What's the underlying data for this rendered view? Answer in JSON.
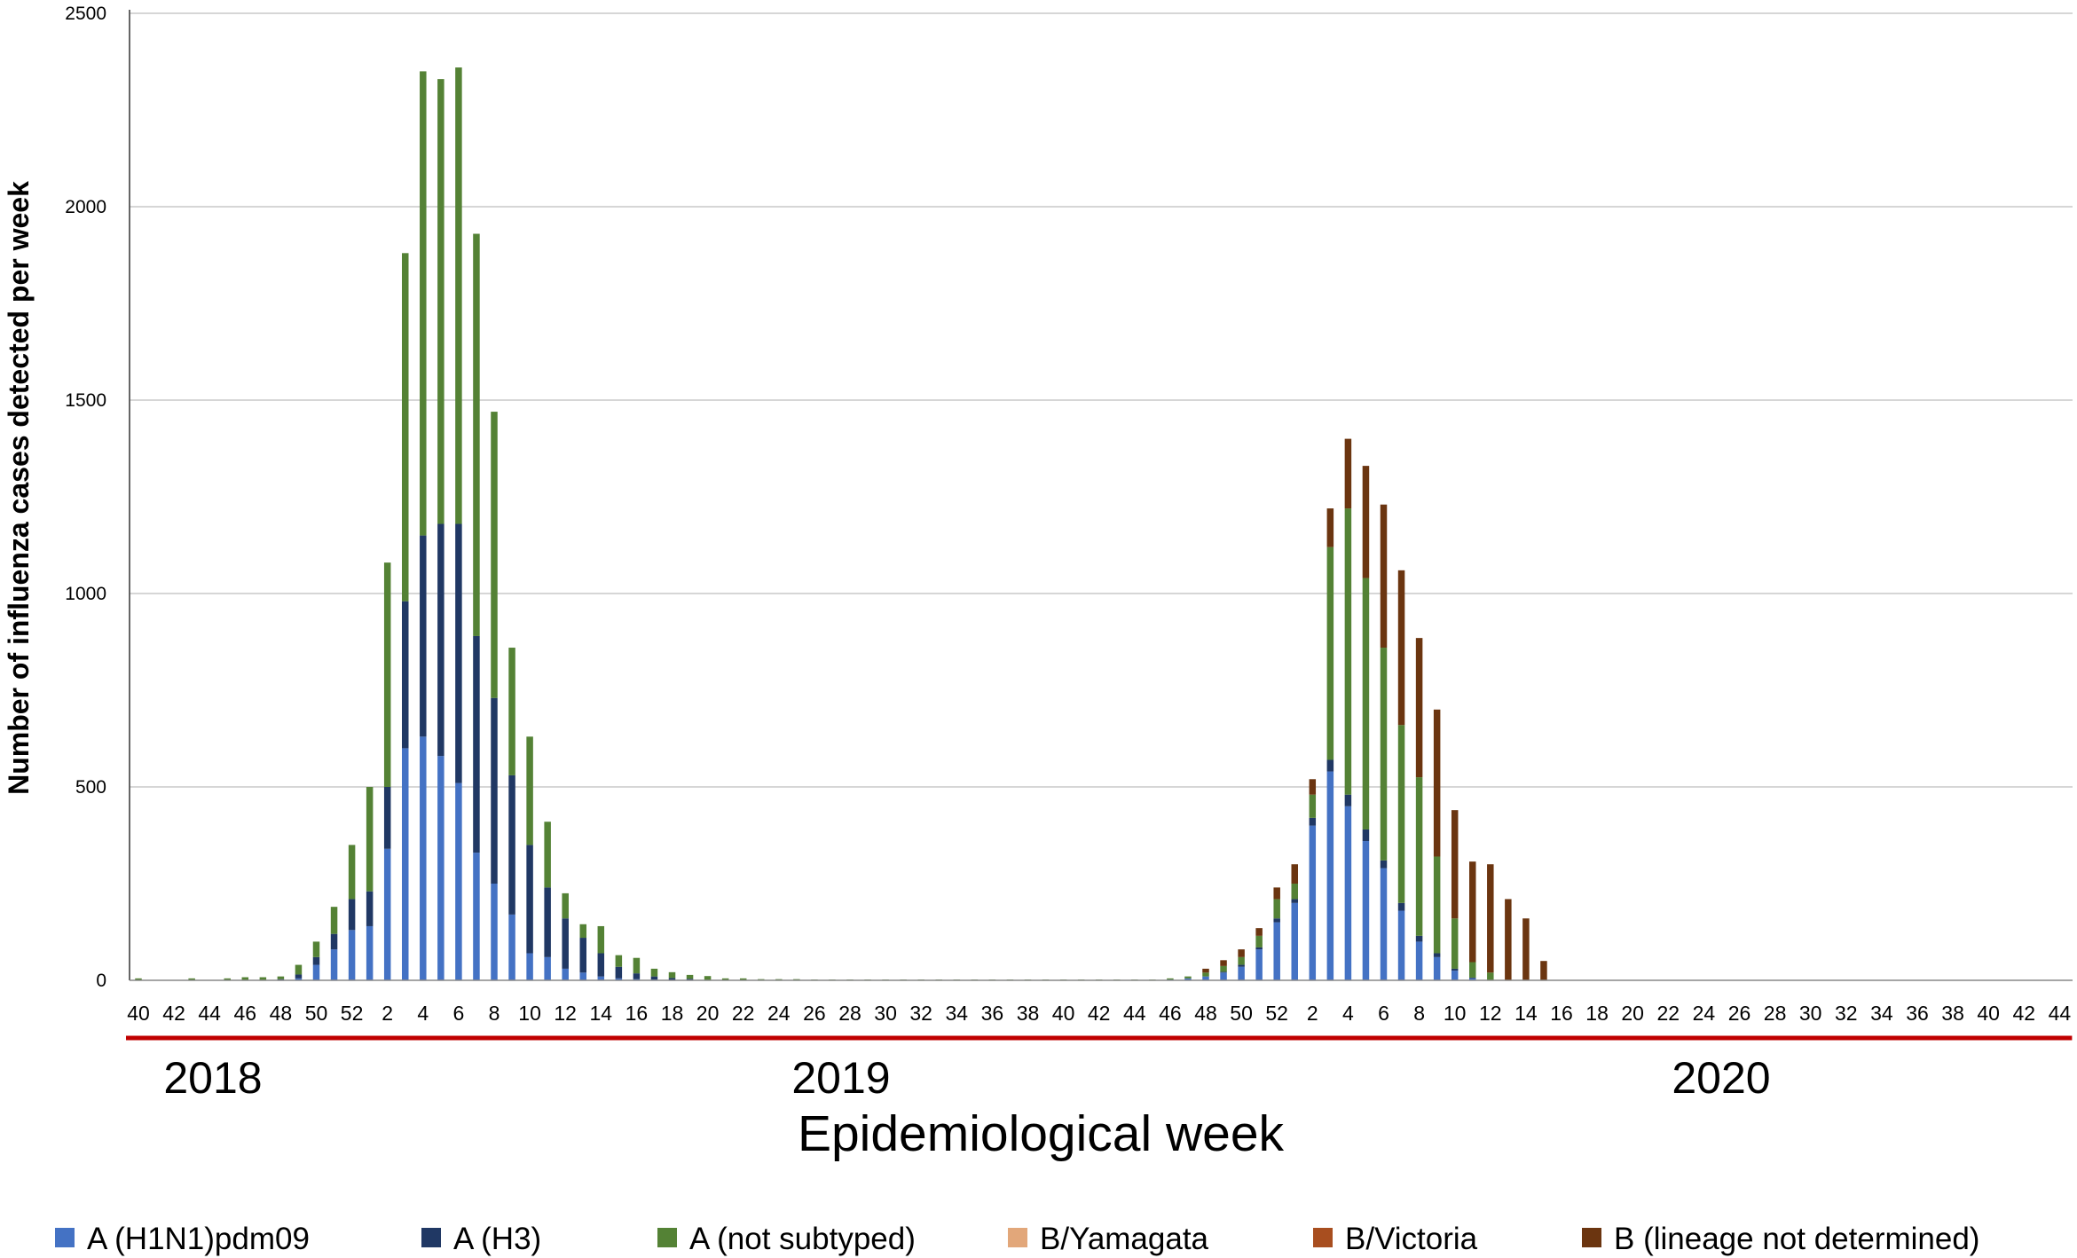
{
  "chart_data": {
    "type": "bar",
    "stacked": true,
    "title": "",
    "xlabel": "Epidemiological week",
    "ylabel": "Number of influenza cases detected per week",
    "ylim": [
      0,
      2500
    ],
    "yticks": [
      0,
      500,
      1000,
      1500,
      2000,
      2500
    ],
    "grid": true,
    "legend_position": "bottom",
    "years": [
      {
        "label": "2018",
        "from_index": 0,
        "to_index": 12
      },
      {
        "label": "2019",
        "from_index": 13,
        "to_index": 64
      },
      {
        "label": "2020",
        "from_index": 65,
        "to_index": 108
      }
    ],
    "categories": [
      "40",
      "41",
      "42",
      "43",
      "44",
      "45",
      "46",
      "47",
      "48",
      "49",
      "50",
      "51",
      "52",
      "1",
      "2",
      "3",
      "4",
      "5",
      "6",
      "7",
      "8",
      "9",
      "10",
      "11",
      "12",
      "13",
      "14",
      "15",
      "16",
      "17",
      "18",
      "19",
      "20",
      "21",
      "22",
      "23",
      "24",
      "25",
      "26",
      "27",
      "28",
      "29",
      "30",
      "31",
      "32",
      "33",
      "34",
      "35",
      "36",
      "37",
      "38",
      "39",
      "40",
      "41",
      "42",
      "43",
      "44",
      "45",
      "46",
      "47",
      "48",
      "49",
      "50",
      "51",
      "52",
      "1",
      "2",
      "3",
      "4",
      "5",
      "6",
      "7",
      "8",
      "9",
      "10",
      "11",
      "12",
      "13",
      "14",
      "15",
      "16",
      "17",
      "18",
      "19",
      "20",
      "21",
      "22",
      "23",
      "24",
      "25",
      "26",
      "27",
      "28",
      "29",
      "30",
      "31",
      "32",
      "33",
      "34",
      "35",
      "36",
      "37",
      "38",
      "39",
      "40",
      "41",
      "42",
      "43",
      "44"
    ],
    "tick_labels": [
      "40",
      "",
      "42",
      "",
      "44",
      "",
      "46",
      "",
      "48",
      "",
      "50",
      "",
      "52",
      "",
      "2",
      "",
      "4",
      "",
      "6",
      "",
      "8",
      "",
      "10",
      "",
      "12",
      "",
      "14",
      "",
      "16",
      "",
      "18",
      "",
      "20",
      "",
      "22",
      "",
      "24",
      "",
      "26",
      "",
      "28",
      "",
      "30",
      "",
      "32",
      "",
      "34",
      "",
      "36",
      "",
      "38",
      "",
      "40",
      "",
      "42",
      "",
      "44",
      "",
      "46",
      "",
      "48",
      "",
      "50",
      "",
      "52",
      "",
      "2",
      "",
      "4",
      "",
      "6",
      "",
      "8",
      "",
      "10",
      "",
      "12",
      "",
      "14",
      "",
      "16",
      "",
      "18",
      "",
      "20",
      "",
      "22",
      "",
      "24",
      "",
      "26",
      "",
      "28",
      "",
      "30",
      "",
      "32",
      "",
      "34",
      "",
      "36",
      "",
      "38",
      "",
      "40",
      "",
      "42",
      "",
      "44"
    ],
    "series": [
      {
        "name": "A (H1N1)pdm09",
        "color": "#4472C4",
        "values": [
          0,
          0,
          0,
          0,
          0,
          0,
          0,
          0,
          1,
          5,
          40,
          80,
          130,
          140,
          340,
          600,
          630,
          580,
          510,
          330,
          250,
          170,
          70,
          60,
          30,
          20,
          10,
          5,
          3,
          2,
          1,
          1,
          0,
          0,
          0,
          0,
          0,
          0,
          0,
          0,
          0,
          0,
          0,
          0,
          0,
          0,
          0,
          0,
          0,
          0,
          0,
          0,
          0,
          0,
          0,
          0,
          0,
          0,
          2,
          5,
          10,
          20,
          35,
          80,
          150,
          200,
          400,
          540,
          450,
          360,
          290,
          180,
          100,
          60,
          25,
          5,
          0,
          0,
          0,
          0,
          0,
          0,
          0,
          0,
          0,
          0,
          0,
          0,
          0,
          0,
          0,
          0,
          0,
          0,
          0,
          0,
          0,
          0,
          0,
          0,
          0,
          0,
          0,
          0,
          0,
          0,
          0,
          0,
          0
        ]
      },
      {
        "name": "A (H3)",
        "color": "#203864",
        "values": [
          0,
          0,
          0,
          0,
          0,
          0,
          0,
          0,
          2,
          10,
          20,
          40,
          80,
          90,
          160,
          380,
          520,
          600,
          670,
          560,
          480,
          360,
          280,
          180,
          130,
          90,
          60,
          30,
          15,
          8,
          5,
          3,
          1,
          0,
          0,
          0,
          0,
          0,
          0,
          0,
          0,
          0,
          0,
          0,
          0,
          0,
          0,
          0,
          0,
          0,
          0,
          0,
          0,
          0,
          0,
          0,
          0,
          0,
          0,
          0,
          0,
          2,
          5,
          5,
          10,
          10,
          20,
          30,
          30,
          30,
          20,
          20,
          15,
          10,
          5,
          2,
          0,
          0,
          0,
          0,
          0,
          0,
          0,
          0,
          0,
          0,
          0,
          0,
          0,
          0,
          0,
          0,
          0,
          0,
          0,
          0,
          0,
          0,
          0,
          0,
          0,
          0,
          0,
          0,
          0,
          0,
          0,
          0,
          0
        ]
      },
      {
        "name": "A (not subtyped)",
        "color": "#548235",
        "values": [
          5,
          0,
          0,
          5,
          0,
          5,
          8,
          8,
          7,
          25,
          40,
          70,
          140,
          270,
          580,
          900,
          1200,
          1150,
          1180,
          1040,
          740,
          330,
          280,
          170,
          65,
          35,
          70,
          30,
          40,
          20,
          15,
          10,
          10,
          5,
          5,
          3,
          3,
          3,
          2,
          2,
          2,
          2,
          2,
          2,
          2,
          2,
          2,
          2,
          2,
          2,
          2,
          2,
          2,
          2,
          2,
          2,
          2,
          2,
          3,
          5,
          10,
          15,
          20,
          30,
          50,
          40,
          60,
          550,
          740,
          650,
          550,
          460,
          410,
          250,
          130,
          40,
          20,
          0,
          0,
          0,
          0,
          0,
          0,
          0,
          0,
          0,
          0,
          0,
          0,
          0,
          0,
          0,
          0,
          0,
          0,
          0,
          0,
          0,
          0,
          0,
          0,
          0,
          0,
          0,
          0,
          0,
          0,
          0,
          0
        ]
      },
      {
        "name": "B/Yamagata",
        "color": "#E2A77A",
        "values": [
          0,
          0,
          0,
          0,
          0,
          0,
          0,
          0,
          0,
          0,
          0,
          0,
          0,
          0,
          0,
          0,
          0,
          0,
          0,
          0,
          0,
          0,
          0,
          0,
          0,
          0,
          0,
          0,
          0,
          0,
          0,
          0,
          0,
          0,
          0,
          0,
          0,
          0,
          0,
          0,
          0,
          0,
          0,
          0,
          0,
          0,
          0,
          0,
          0,
          0,
          0,
          0,
          0,
          0,
          0,
          0,
          0,
          0,
          0,
          0,
          0,
          0,
          0,
          0,
          0,
          0,
          0,
          0,
          0,
          0,
          0,
          0,
          0,
          0,
          0,
          0,
          0,
          0,
          0,
          0,
          0,
          0,
          0,
          0,
          0,
          0,
          0,
          0,
          0,
          0,
          0,
          0,
          0,
          0,
          0,
          0,
          0,
          0,
          0,
          0,
          0,
          0,
          0,
          0,
          0,
          0,
          0,
          0,
          0
        ]
      },
      {
        "name": "B/Victoria",
        "color": "#A84E1F",
        "values": [
          0,
          0,
          0,
          0,
          0,
          0,
          0,
          0,
          0,
          0,
          0,
          0,
          0,
          0,
          0,
          0,
          0,
          0,
          0,
          0,
          0,
          0,
          0,
          0,
          0,
          0,
          0,
          0,
          0,
          0,
          0,
          0,
          0,
          0,
          0,
          0,
          0,
          0,
          0,
          0,
          0,
          0,
          0,
          0,
          0,
          0,
          0,
          0,
          0,
          0,
          0,
          0,
          0,
          0,
          0,
          0,
          0,
          0,
          0,
          0,
          0,
          0,
          0,
          0,
          0,
          0,
          0,
          0,
          0,
          0,
          0,
          0,
          0,
          0,
          0,
          0,
          0,
          0,
          0,
          0,
          0,
          0,
          0,
          0,
          0,
          0,
          0,
          0,
          0,
          0,
          0,
          0,
          0,
          0,
          0,
          0,
          0,
          0,
          0,
          0,
          0,
          0,
          0,
          0,
          0,
          0,
          0,
          0,
          0
        ]
      },
      {
        "name": "B (lineage not determined)",
        "color": "#6B3510",
        "values": [
          0,
          0,
          0,
          0,
          0,
          0,
          0,
          0,
          0,
          0,
          0,
          0,
          0,
          0,
          0,
          0,
          0,
          0,
          0,
          0,
          0,
          0,
          0,
          0,
          0,
          0,
          0,
          0,
          0,
          0,
          0,
          0,
          0,
          0,
          0,
          0,
          0,
          0,
          0,
          0,
          0,
          0,
          0,
          0,
          0,
          0,
          0,
          0,
          0,
          0,
          0,
          0,
          0,
          0,
          0,
          0,
          0,
          0,
          0,
          0,
          10,
          15,
          20,
          20,
          30,
          50,
          40,
          100,
          180,
          290,
          370,
          400,
          360,
          380,
          280,
          260,
          280,
          210,
          160,
          50,
          0,
          0,
          0,
          0,
          0,
          0,
          0,
          0,
          0,
          0,
          0,
          0,
          0,
          0,
          0,
          0,
          0,
          0,
          0,
          0,
          0,
          0,
          0,
          0,
          0,
          0,
          0,
          0,
          0
        ]
      }
    ]
  }
}
